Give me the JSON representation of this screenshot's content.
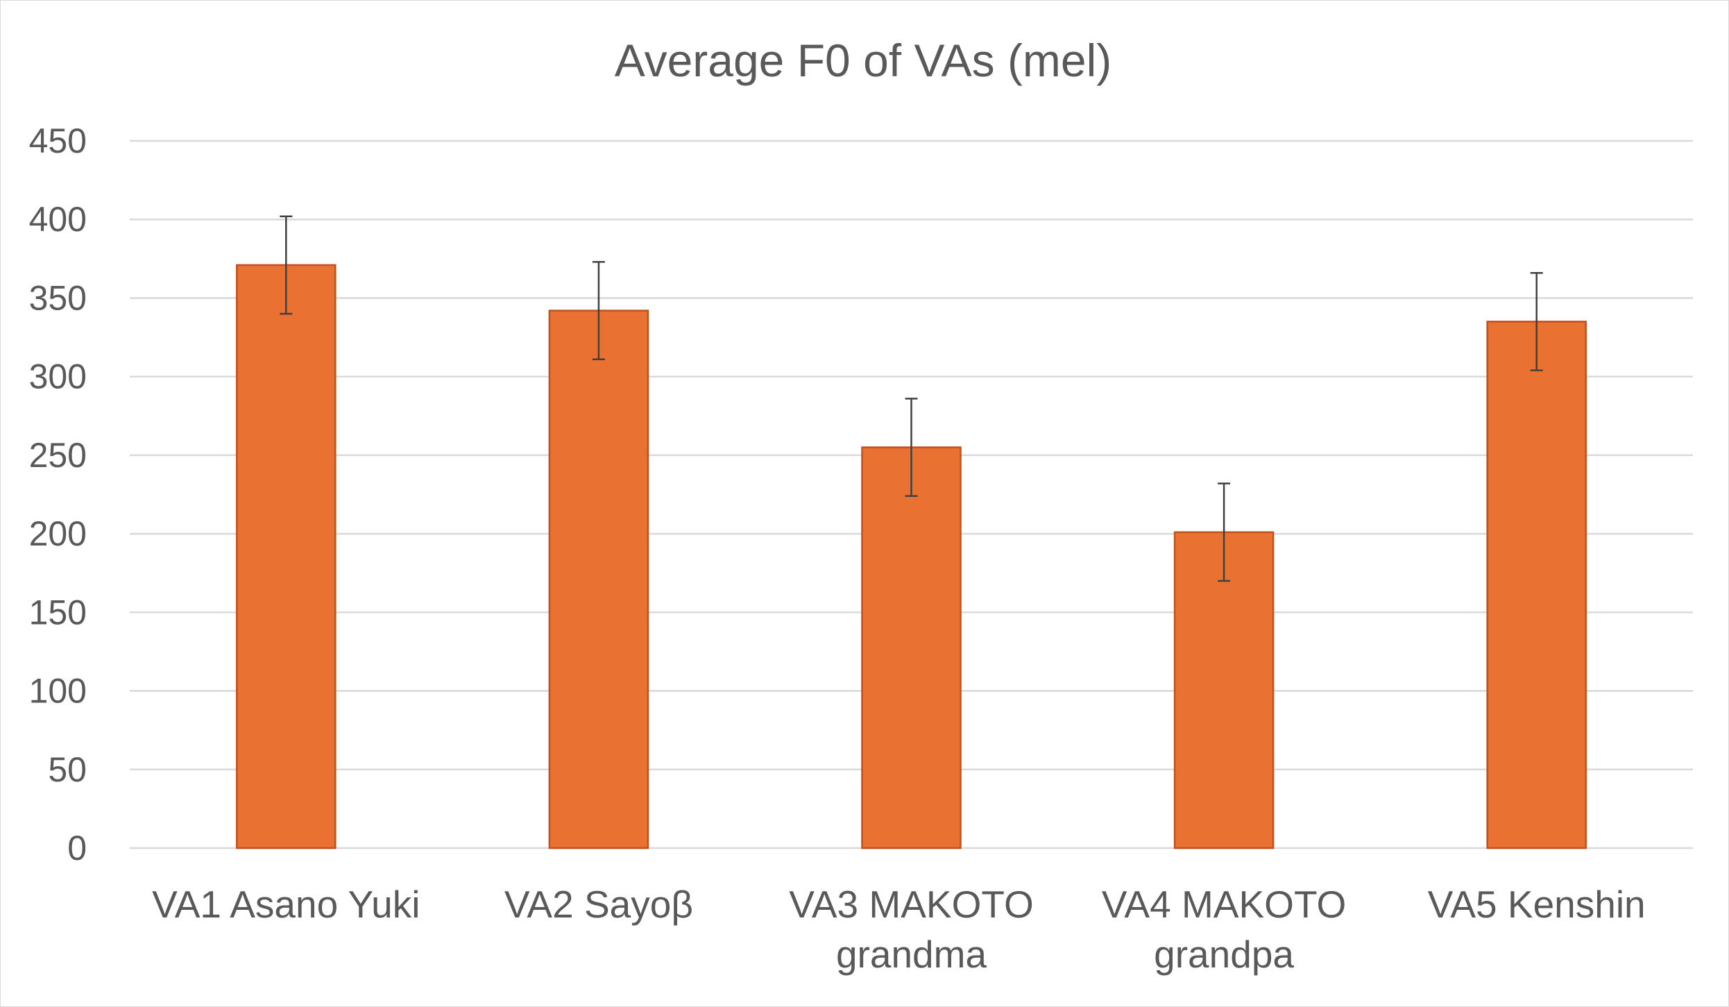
{
  "chart_data": {
    "type": "bar",
    "title": "Average F0 of VAs (mel)",
    "xlabel": "",
    "ylabel": "",
    "ylim": [
      0,
      450
    ],
    "yticks": [
      "0",
      "50",
      "100",
      "150",
      "200",
      "250",
      "300",
      "350",
      "400",
      "450"
    ],
    "grid": true,
    "legend": "none",
    "categories": [
      [
        "VA1 Asano Yuki"
      ],
      [
        "VA2 Sayoβ"
      ],
      [
        "VA3 MAKOTO",
        "grandma"
      ],
      [
        "VA4 MAKOTO",
        "grandpa"
      ],
      [
        "VA5 Kenshin"
      ]
    ],
    "values": [
      371,
      342,
      255,
      201,
      335
    ],
    "error": [
      31,
      31,
      31,
      31,
      31
    ],
    "bar_color": "#e97132",
    "bar_edge_color": "#c0501c",
    "error_color": "#404040",
    "grid_color": "#d9d9d9",
    "text_color": "#595959"
  }
}
